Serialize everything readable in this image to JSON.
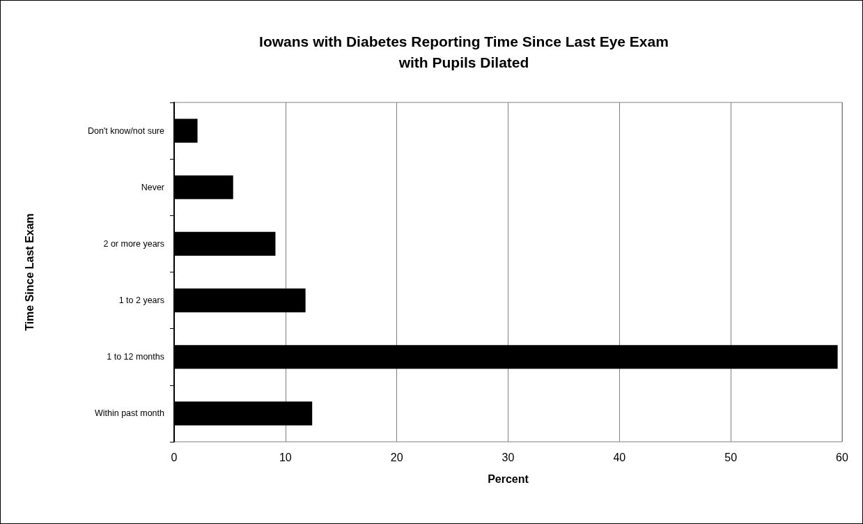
{
  "chart_data": {
    "type": "bar",
    "orientation": "horizontal",
    "title": "Iowans with Diabetes Reporting Time Since Last Eye Exam\nwith Pupils Dilated",
    "xlabel": "Percent",
    "ylabel": "Time Since Last Exam",
    "categories": [
      "Don't know/not sure",
      "Never",
      "2 or more years",
      "1 to 2 years",
      "1 to 12 months",
      "Within past month"
    ],
    "values": [
      2.1,
      5.3,
      9.1,
      11.8,
      59.6,
      12.4
    ],
    "color": "#000000",
    "xlim": [
      0,
      60
    ],
    "xticks": [
      0,
      10,
      20,
      30,
      40,
      50,
      60
    ],
    "grid": "x"
  }
}
